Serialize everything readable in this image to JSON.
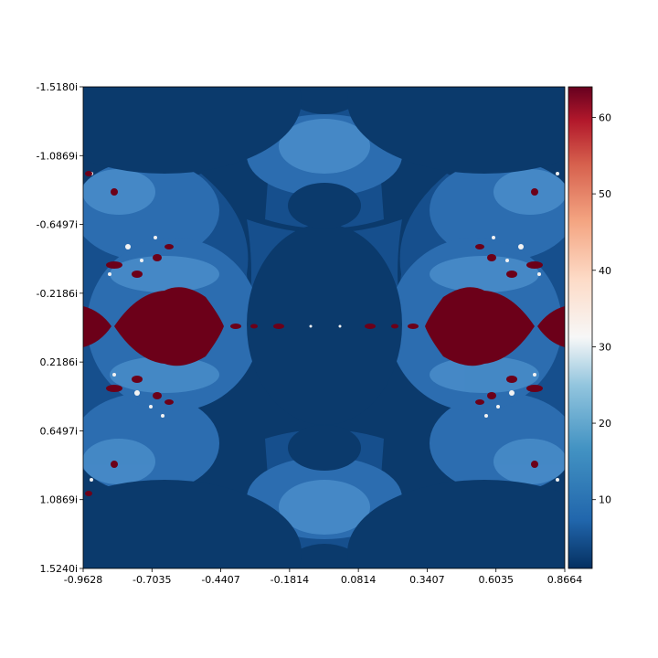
{
  "chart_data": {
    "type": "heatmap",
    "title": "",
    "xlabel": "",
    "ylabel": "",
    "x_ticks": [
      "-0.9628",
      "-0.7035",
      "-0.4407",
      "-0.1814",
      "0.0814",
      "0.3407",
      "0.6035",
      "0.8664"
    ],
    "y_ticks": [
      "-1.5180i",
      "-1.0869i",
      "-0.6497i",
      "-0.2186i",
      "0.2186i",
      "0.6497i",
      "1.0869i",
      "1.5240i"
    ],
    "xlim": [
      -0.9628,
      0.8664
    ],
    "ylim": [
      -1.518,
      1.524
    ],
    "colormap": "RdBu_r",
    "colorbar": {
      "ticks": [
        "10",
        "20",
        "30",
        "40",
        "50",
        "60"
      ],
      "range": [
        1,
        64
      ]
    },
    "grid": false,
    "colors": {
      "background": "#0a3c6f",
      "mid_blue": "#1c5ea3",
      "light_blue": "#3e86c2",
      "white": "#f4f4f4",
      "dark_red": "#6c0019"
    },
    "description_regions": {
      "max_iter_blobs": "two large dark-red bulbs centered near real ±0.66, imaginary 0",
      "escape_background": "dark navy blue fills most of the plane"
    }
  }
}
